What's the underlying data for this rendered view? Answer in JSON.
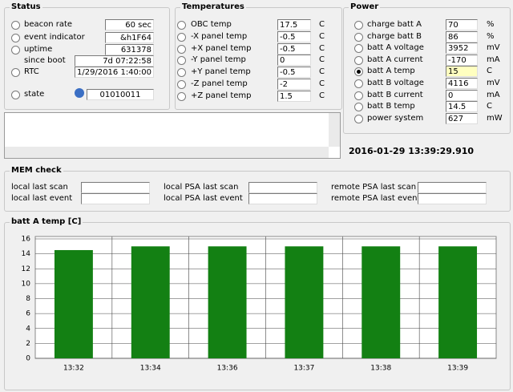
{
  "status": {
    "title": "Status",
    "rows": [
      {
        "label": "beacon rate",
        "value": "60 sec"
      },
      {
        "label": "event indicator",
        "value": "&h1F64"
      },
      {
        "label": "uptime",
        "value": "631378"
      },
      {
        "label": "since boot",
        "value": "7d 07:22:58",
        "radio": false
      },
      {
        "label": "RTC",
        "value": "1/29/2016 1:40:00"
      },
      {
        "label": "state",
        "value": "01010011"
      }
    ]
  },
  "temperatures": {
    "title": "Temperatures",
    "rows": [
      {
        "label": "OBC temp",
        "value": "17.5",
        "unit": "C"
      },
      {
        "label": "-X panel temp",
        "value": "-0.5",
        "unit": "C"
      },
      {
        "label": "+X panel temp",
        "value": "-0.5",
        "unit": "C"
      },
      {
        "label": "-Y panel temp",
        "value": "0",
        "unit": "C"
      },
      {
        "label": "+Y panel temp",
        "value": "-0.5",
        "unit": "C"
      },
      {
        "label": "-Z panel temp",
        "value": "-2",
        "unit": "C"
      },
      {
        "label": "+Z panel temp",
        "value": "1.5",
        "unit": "C"
      }
    ]
  },
  "power": {
    "title": "Power",
    "rows": [
      {
        "label": "charge batt A",
        "value": "70",
        "unit": "%"
      },
      {
        "label": "charge batt B",
        "value": "86",
        "unit": "%"
      },
      {
        "label": "batt A voltage",
        "value": "3952",
        "unit": "mV"
      },
      {
        "label": "batt A current",
        "value": "-170",
        "unit": "mA"
      },
      {
        "label": "batt A temp",
        "value": "15",
        "unit": "C",
        "selected": true
      },
      {
        "label": "batt B voltage",
        "value": "4116",
        "unit": "mV"
      },
      {
        "label": "batt B current",
        "value": "0",
        "unit": "mA"
      },
      {
        "label": "batt B temp",
        "value": "14.5",
        "unit": "C"
      },
      {
        "label": "power system",
        "value": "627",
        "unit": "mW"
      }
    ]
  },
  "timestamp": "2016-01-29 13:39:29.910",
  "mem_check": {
    "title": "MEM check",
    "items": [
      {
        "label": "local last scan"
      },
      {
        "label": "local last event"
      },
      {
        "label": "local PSA last scan"
      },
      {
        "label": "local PSA last event"
      },
      {
        "label": "remote PSA last scan"
      },
      {
        "label": "remote PSA last event"
      }
    ]
  },
  "chart_data": {
    "type": "bar",
    "title": "batt A temp [C]",
    "categories": [
      "13:32",
      "13:34",
      "13:36",
      "13:37",
      "13:38",
      "13:39"
    ],
    "values": [
      14.5,
      15,
      15,
      15,
      15,
      15
    ],
    "color": "#138013",
    "ylim": [
      0,
      16
    ],
    "yticks": [
      0,
      2,
      4,
      6,
      8,
      10,
      12,
      14,
      16
    ],
    "grid": true
  }
}
